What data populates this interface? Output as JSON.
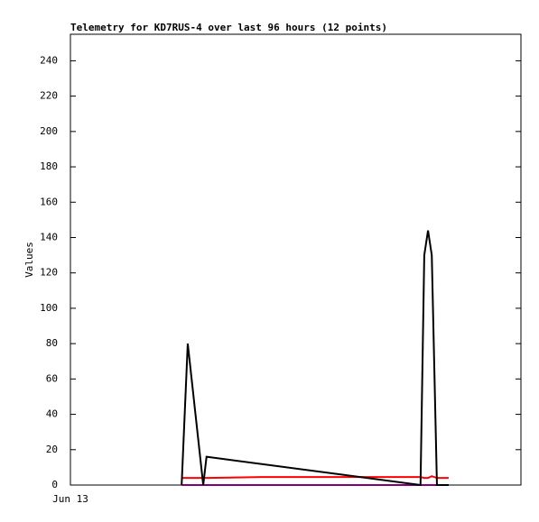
{
  "chart_data": {
    "type": "line",
    "title": "Telemetry for KD7RUS-4 over last 96 hours (12 points)",
    "y_label": "Values",
    "xlim": [
      0,
      96
    ],
    "xticks": [
      {
        "value": 0,
        "label": "Jun 13"
      }
    ],
    "ylim": [
      0,
      255
    ],
    "yticks": [
      0,
      20,
      40,
      60,
      80,
      100,
      120,
      140,
      160,
      180,
      200,
      220,
      240
    ],
    "series": [
      {
        "color": "#ff0000",
        "x": [
          23.7,
          25,
          28.3,
          29,
          40.7,
          74.6,
          75.4,
          76.2,
          77,
          78.1,
          80.6
        ],
        "values": [
          4,
          4,
          4,
          4,
          4.5,
          4.5,
          4,
          4,
          5,
          4,
          4
        ]
      },
      {
        "color": "#800080",
        "x": [
          23.7,
          25,
          28.3,
          29,
          74.6,
          75.4,
          76.2,
          77,
          78.1,
          80.6
        ],
        "values": [
          0,
          0,
          0,
          0,
          0,
          0,
          0,
          0,
          0,
          0
        ]
      },
      {
        "color": "#000000",
        "x": [
          23.7,
          25,
          28.3,
          29,
          74.6,
          75.4,
          76.2,
          77,
          78.1,
          80.6
        ],
        "values": [
          0,
          80,
          0,
          16,
          0,
          130,
          144,
          130,
          0,
          0
        ]
      }
    ]
  }
}
